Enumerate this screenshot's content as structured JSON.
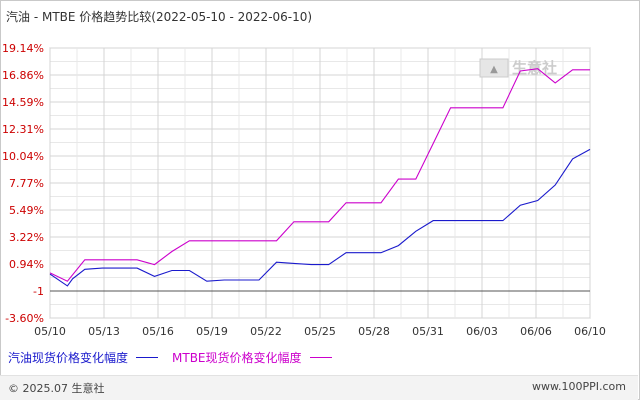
{
  "title": "汽油 - MTBE 价格趋势比较(2022-05-10 - 2022-06-10)",
  "watermark": "生意社",
  "colors": {
    "series1": "#1a1acc",
    "series2": "#cc00cc",
    "grid": "#d4d4d4",
    "ytick": "#cc0000",
    "xtick": "#333333"
  },
  "footer": {
    "left": "© 2025.07 生意社",
    "right": "www.100PPI.com"
  },
  "chart_data": {
    "type": "line",
    "title": "汽油 - MTBE 价格趋势比较(2022-05-10 - 2022-06-10)",
    "y_tick_labels": [
      "19.14%",
      "16.86%",
      "14.59%",
      "12.31%",
      "10.04%",
      "7.77%",
      "5.49%",
      "3.22%",
      "0.94%",
      "-1",
      "-3.60%"
    ],
    "ylim": [
      -3.6,
      19.14
    ],
    "x_tick_labels": [
      "05/10",
      "05/13",
      "05/16",
      "05/19",
      "05/22",
      "05/25",
      "05/28",
      "05/31",
      "06/03",
      "06/06",
      "06/10"
    ],
    "x_range": [
      0,
      31
    ],
    "grid": true,
    "legend_position": "bottom-left",
    "series": [
      {
        "name": "汽油现货价格变化幅度",
        "color": "#1a1acc",
        "points": [
          [
            0,
            0.1
          ],
          [
            1,
            -0.9
          ],
          [
            1.3,
            -0.3
          ],
          [
            2,
            0.5
          ],
          [
            3,
            0.6
          ],
          [
            5,
            0.6
          ],
          [
            6,
            -0.1
          ],
          [
            7,
            0.4
          ],
          [
            8,
            0.4
          ],
          [
            9,
            -0.5
          ],
          [
            10,
            -0.4
          ],
          [
            12,
            -0.4
          ],
          [
            13,
            1.1
          ],
          [
            14,
            1.0
          ],
          [
            15,
            0.9
          ],
          [
            16,
            0.9
          ],
          [
            17,
            1.9
          ],
          [
            19,
            1.9
          ],
          [
            20,
            2.5
          ],
          [
            21,
            3.7
          ],
          [
            22,
            4.6
          ],
          [
            24,
            4.6
          ],
          [
            26,
            4.6
          ],
          [
            27,
            5.9
          ],
          [
            28,
            6.3
          ],
          [
            29,
            7.6
          ],
          [
            30,
            9.8
          ],
          [
            31,
            10.6
          ]
        ]
      },
      {
        "name": "MTBE现货价格变化幅度",
        "color": "#cc00cc",
        "points": [
          [
            0,
            0.2
          ],
          [
            1,
            -0.5
          ],
          [
            2,
            1.3
          ],
          [
            3,
            1.3
          ],
          [
            5,
            1.3
          ],
          [
            6,
            0.9
          ],
          [
            7,
            2.0
          ],
          [
            8,
            2.9
          ],
          [
            10,
            2.9
          ],
          [
            12,
            2.9
          ],
          [
            13,
            2.9
          ],
          [
            14,
            4.5
          ],
          [
            16,
            4.5
          ],
          [
            17,
            6.1
          ],
          [
            19,
            6.1
          ],
          [
            20,
            8.1
          ],
          [
            21,
            8.1
          ],
          [
            22,
            11.1
          ],
          [
            23,
            14.1
          ],
          [
            25,
            14.1
          ],
          [
            26,
            14.1
          ],
          [
            27,
            17.2
          ],
          [
            28,
            17.4
          ],
          [
            29,
            16.2
          ],
          [
            30,
            17.3
          ],
          [
            31,
            17.3
          ]
        ]
      }
    ]
  }
}
